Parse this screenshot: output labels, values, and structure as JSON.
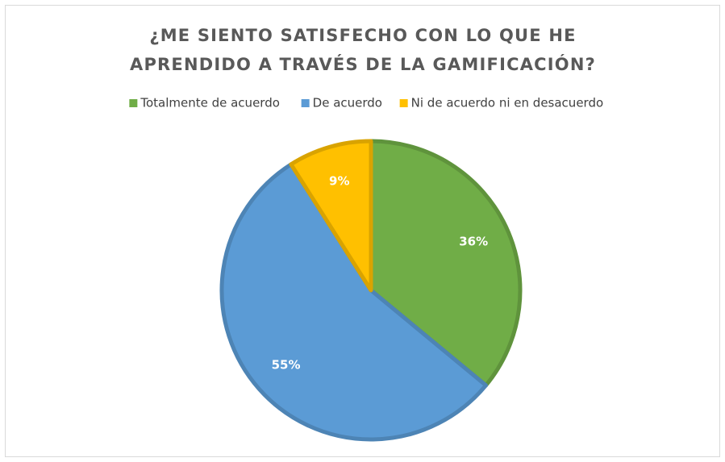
{
  "chart_data": {
    "type": "pie",
    "title": "¿ME SIENTO SATISFECHO CON LO QUE HE APRENDIDO A TRAVÉS DE LA GAMIFICACIÓN?",
    "categories": [
      "Totalmente de acuerdo",
      "De acuerdo",
      "Ni de acuerdo ni en desacuerdo"
    ],
    "values": [
      36,
      55,
      9
    ],
    "value_labels": [
      "36%",
      "55%",
      "9%"
    ],
    "colors": [
      "#70ad47",
      "#5b9bd5",
      "#ffc000"
    ],
    "legend": "top"
  }
}
